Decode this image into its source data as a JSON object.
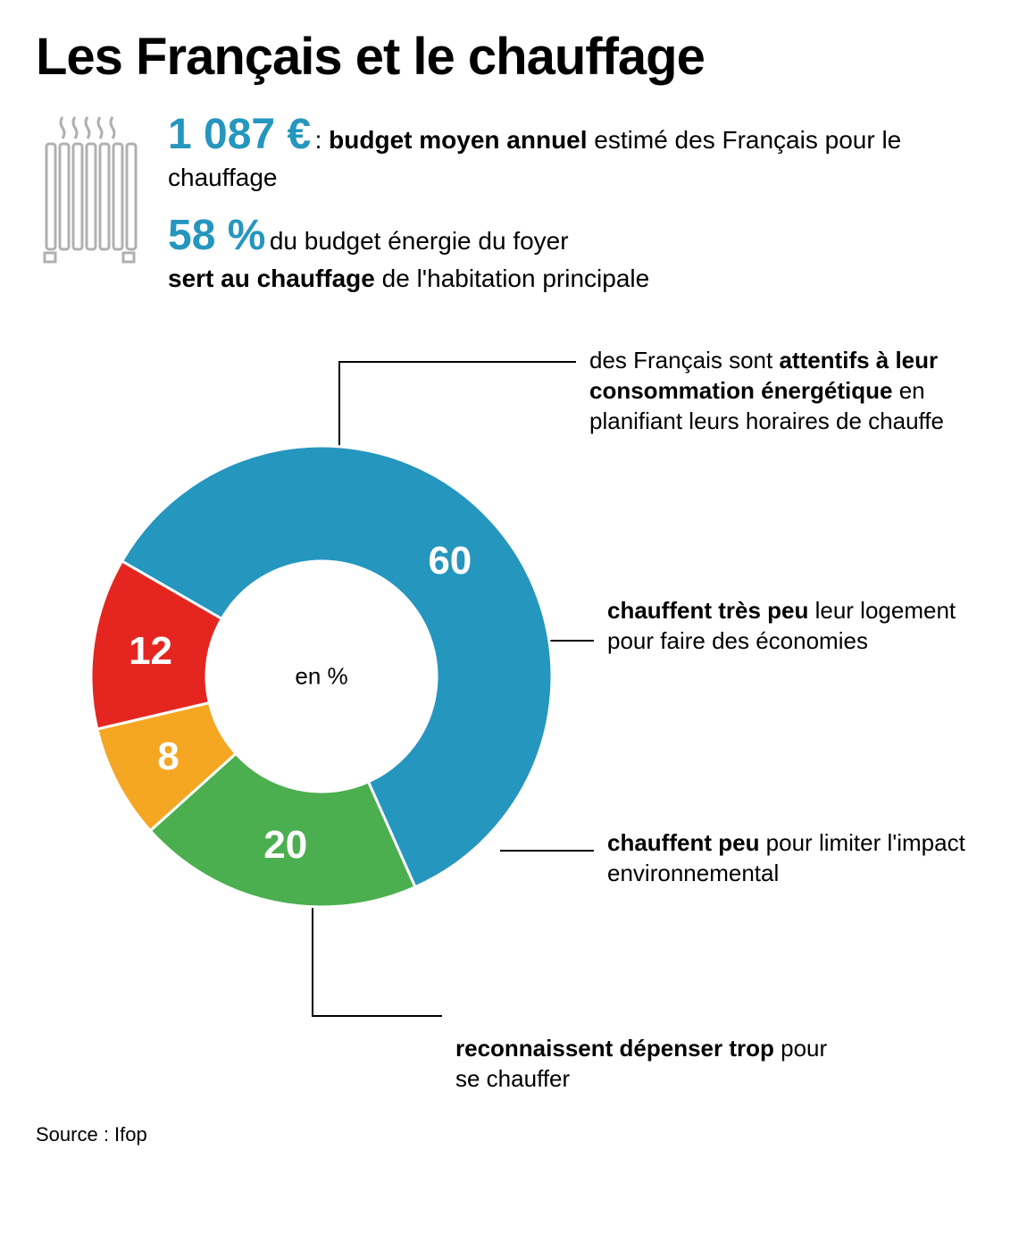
{
  "title": "Les Français et le chauffage",
  "accent_color": "#2596be",
  "stat1": {
    "value": "1 087 €",
    "label_prefix": ": ",
    "label_bold": "budget moyen annuel",
    "label_rest": " estimé des Français pour le chauffage"
  },
  "stat2": {
    "value": "58 %",
    "label_part1": " du budget énergie du foyer ",
    "label_bold": "sert au chauffage",
    "label_part2": " de l'habitation principale"
  },
  "chart": {
    "type": "donut",
    "center_label": "en %",
    "inner_radius_ratio": 0.5,
    "slices": [
      {
        "value": 60,
        "color": "#2596be",
        "label": "60"
      },
      {
        "value": 20,
        "color": "#4caf4f",
        "label": "20"
      },
      {
        "value": 8,
        "color": "#f5a623",
        "label": "8"
      },
      {
        "value": 12,
        "color": "#e52620",
        "label": "12"
      }
    ],
    "start_angle_deg": -150,
    "background_color": "#ffffff",
    "label_color": "#ffffff",
    "label_fontsize": 44
  },
  "callouts": [
    {
      "b1": "",
      "t1": "des Français sont ",
      "b2": "attentifs à leur consommation énergétique",
      "t2": " en planifiant leurs horaires de chauffe"
    },
    {
      "b1": "chauffent très peu",
      "t1": " leur logement pour faire des économies",
      "b2": "",
      "t2": ""
    },
    {
      "b1": "chauffent peu",
      "t1": " pour limiter l'impact environnemental",
      "b2": "",
      "t2": ""
    },
    {
      "b1": "reconnaissent dépenser trop",
      "t1": " pour se chauffer",
      "b2": "",
      "t2": ""
    }
  ],
  "source_label": "Source : Ifop",
  "radiator_color": "#b0b0b0"
}
